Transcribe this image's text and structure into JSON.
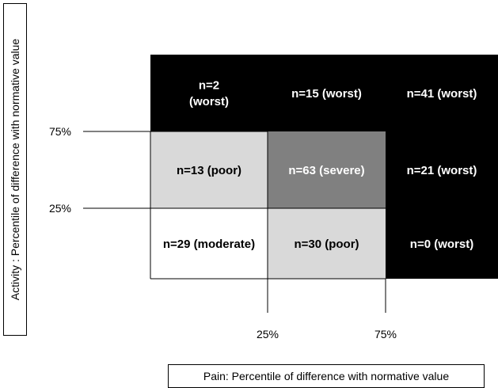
{
  "chart_data": {
    "type": "heatmap",
    "title": "",
    "xlabel": "Pain: Percentile of difference with normative value",
    "ylabel": "Activity : Percentile of difference with normative value",
    "x_ticks": [
      "25%",
      "75%"
    ],
    "y_ticks": [
      "75%",
      "25%"
    ],
    "x_bins": [
      "<25%",
      "25%-75%",
      ">75%"
    ],
    "y_bins": [
      ">75%",
      "25%-75%",
      "<25%"
    ],
    "category_colors": {
      "worst": "#000000",
      "severe": "#808080",
      "poor": "#d9d9d9",
      "moderate": "#ffffff"
    },
    "cells": [
      [
        {
          "label": "n=2\n(worst)",
          "n": 2,
          "category": "worst"
        },
        {
          "label": "n=15 (worst)",
          "n": 15,
          "category": "worst"
        },
        {
          "label": "n=41 (worst)",
          "n": 41,
          "category": "worst"
        }
      ],
      [
        {
          "label": "n=13 (poor)",
          "n": 13,
          "category": "poor"
        },
        {
          "label": "n=63 (severe)",
          "n": 63,
          "category": "severe"
        },
        {
          "label": "n=21 (worst)",
          "n": 21,
          "category": "worst"
        }
      ],
      [
        {
          "label": "n=29 (moderate)",
          "n": 29,
          "category": "moderate"
        },
        {
          "label": "n=30 (poor)",
          "n": 30,
          "category": "poor"
        },
        {
          "label": "n=0 (worst)",
          "n": 0,
          "category": "worst"
        }
      ]
    ]
  }
}
